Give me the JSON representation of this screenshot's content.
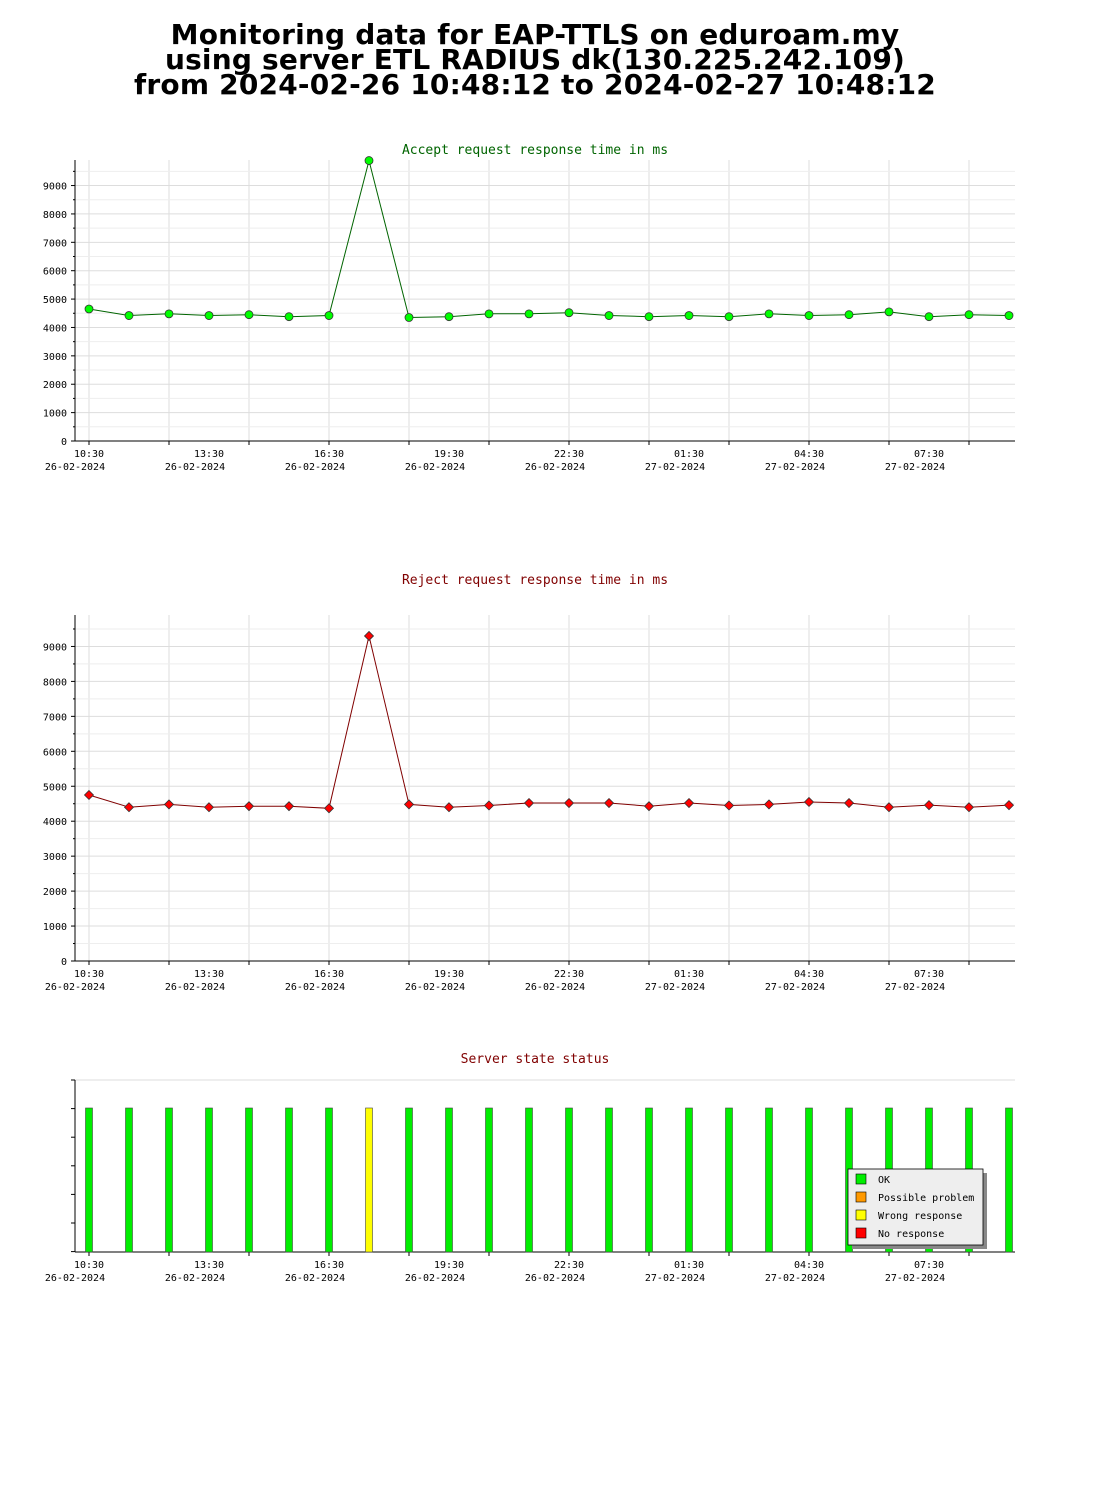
{
  "page_title": {
    "line1": "Monitoring data for EAP-TTLS on eduroam.my",
    "line2": "using server ETL RADIUS dk(130.225.242.109)",
    "line3": "from 2024-02-26 10:48:12 to 2024-02-27 10:48:12"
  },
  "colors": {
    "accept_line": "#006400",
    "accept_marker": "#00ff00",
    "reject_line": "#800000",
    "reject_marker": "#ff0000",
    "ok": "#00ee00",
    "possible_problem": "#ff9900",
    "wrong_response": "#ffff00",
    "no_response": "#ff0000",
    "grid": "#dddddd"
  },
  "chart_data": [
    {
      "type": "line",
      "title": "Accept request response time in ms",
      "title_color": "#006400",
      "ylim": [
        0,
        9900
      ],
      "yticks": [
        0,
        1000,
        2000,
        3000,
        4000,
        5000,
        6000,
        7000,
        8000,
        9000
      ],
      "xlim": [
        -0.35,
        23.15
      ],
      "x_tick_labels": [
        {
          "time": "10:30",
          "date": "26-02-2024"
        },
        {
          "time": "13:30",
          "date": "26-02-2024"
        },
        {
          "time": "16:30",
          "date": "26-02-2024"
        },
        {
          "time": "19:30",
          "date": "26-02-2024"
        },
        {
          "time": "22:30",
          "date": "26-02-2024"
        },
        {
          "time": "01:30",
          "date": "27-02-2024"
        },
        {
          "time": "04:30",
          "date": "27-02-2024"
        },
        {
          "time": "07:30",
          "date": "27-02-2024"
        }
      ],
      "grid": true,
      "series": [
        {
          "values": [
            4650,
            4420,
            4480,
            4420,
            4450,
            4380,
            4420,
            9880,
            4350,
            4380,
            4480,
            4480,
            4520,
            4420,
            4380,
            4420,
            4380,
            4480,
            4420,
            4450,
            4550,
            4380,
            4450,
            4420
          ]
        }
      ]
    },
    {
      "type": "line",
      "title": "Reject request response time in ms",
      "title_color": "#800000",
      "ylim": [
        0,
        9900
      ],
      "yticks": [
        0,
        1000,
        2000,
        3000,
        4000,
        5000,
        6000,
        7000,
        8000,
        9000
      ],
      "xlim": [
        -0.35,
        23.15
      ],
      "x_tick_labels": [
        {
          "time": "10:30",
          "date": "26-02-2024"
        },
        {
          "time": "13:30",
          "date": "26-02-2024"
        },
        {
          "time": "16:30",
          "date": "26-02-2024"
        },
        {
          "time": "19:30",
          "date": "26-02-2024"
        },
        {
          "time": "22:30",
          "date": "26-02-2024"
        },
        {
          "time": "01:30",
          "date": "27-02-2024"
        },
        {
          "time": "04:30",
          "date": "27-02-2024"
        },
        {
          "time": "07:30",
          "date": "27-02-2024"
        }
      ],
      "grid": true,
      "series": [
        {
          "values": [
            4750,
            4400,
            4480,
            4400,
            4430,
            4430,
            4370,
            9300,
            4480,
            4400,
            4450,
            4520,
            4520,
            4520,
            4430,
            4520,
            4450,
            4480,
            4550,
            4520,
            4400,
            4460,
            4400,
            4460
          ]
        }
      ]
    },
    {
      "type": "bar",
      "title": "Server state status",
      "title_color": "#800000",
      "xlim": [
        -0.35,
        23.15
      ],
      "x_tick_labels": [
        {
          "time": "10:30",
          "date": "26-02-2024"
        },
        {
          "time": "13:30",
          "date": "26-02-2024"
        },
        {
          "time": "16:30",
          "date": "26-02-2024"
        },
        {
          "time": "19:30",
          "date": "26-02-2024"
        },
        {
          "time": "22:30",
          "date": "26-02-2024"
        },
        {
          "time": "01:30",
          "date": "27-02-2024"
        },
        {
          "time": "04:30",
          "date": "27-02-2024"
        },
        {
          "time": "07:30",
          "date": "27-02-2024"
        }
      ],
      "states": [
        "OK",
        "OK",
        "OK",
        "OK",
        "OK",
        "OK",
        "OK",
        "Wrong response",
        "OK",
        "OK",
        "OK",
        "OK",
        "OK",
        "OK",
        "OK",
        "OK",
        "OK",
        "OK",
        "OK",
        "OK",
        "OK",
        "OK",
        "OK",
        "OK"
      ],
      "legend": [
        "OK",
        "Possible problem",
        "Wrong response",
        "No response"
      ],
      "legend_placement": "bottom-right",
      "grid": false
    }
  ]
}
